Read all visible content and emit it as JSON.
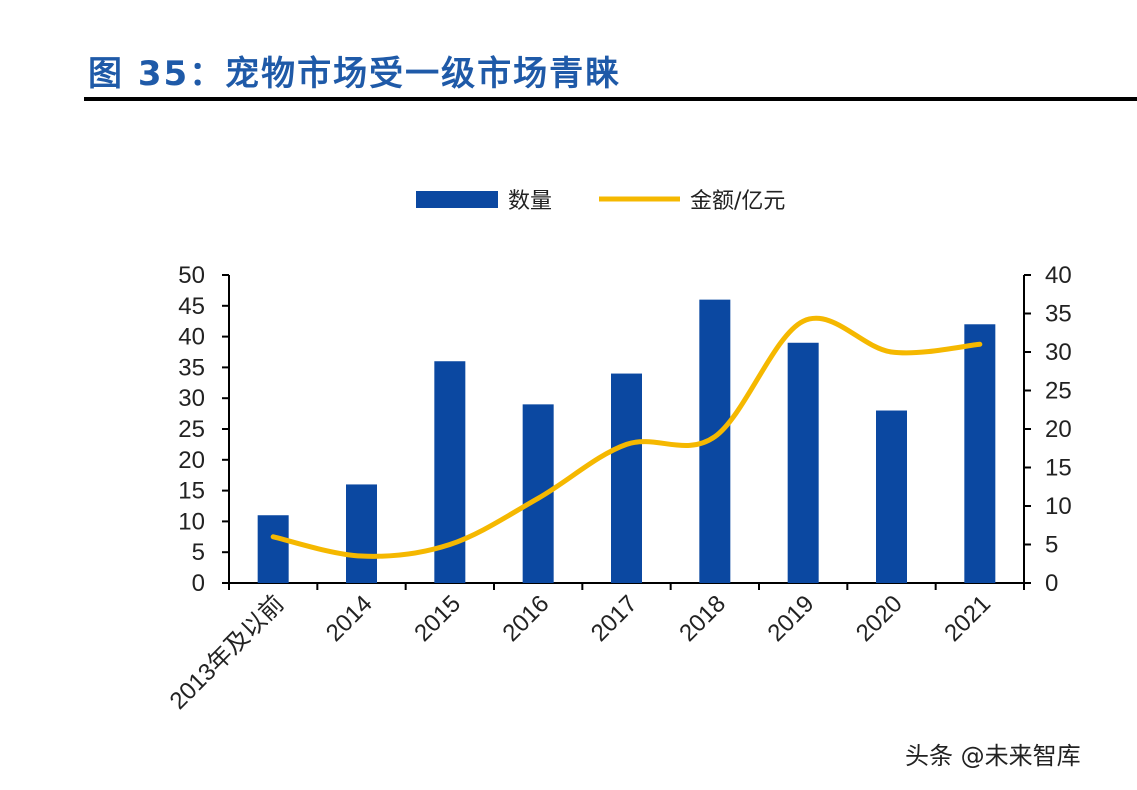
{
  "header": {
    "title": "图 35：宠物市场受一级市场青睐"
  },
  "watermark": "头条 @未来智库",
  "colors": {
    "bar": "#0b48a1",
    "line": "#f5b800",
    "title": "#1f5aa8",
    "axis": "#000000"
  },
  "chart_data": {
    "type": "bar",
    "title": "",
    "categories": [
      "2013年及以前",
      "2014",
      "2015",
      "2016",
      "2017",
      "2018",
      "2019",
      "2020",
      "2021"
    ],
    "series": [
      {
        "name": "数量",
        "type": "bar",
        "axis": "left",
        "values": [
          11,
          16,
          36,
          29,
          34,
          46,
          39,
          28,
          42
        ]
      },
      {
        "name": "金额/亿元",
        "type": "line",
        "axis": "right",
        "values": [
          6,
          3.5,
          5,
          11,
          18,
          19,
          34,
          30,
          31
        ]
      }
    ],
    "left_axis": {
      "ylim": [
        0,
        50
      ],
      "ticks": [
        0,
        5,
        10,
        15,
        20,
        25,
        30,
        35,
        40,
        45,
        50
      ]
    },
    "right_axis": {
      "ylim": [
        0,
        40
      ],
      "ticks": [
        0,
        5,
        10,
        15,
        20,
        25,
        30,
        35,
        40
      ]
    },
    "legend": {
      "placement": "top-center"
    },
    "grid": false
  }
}
